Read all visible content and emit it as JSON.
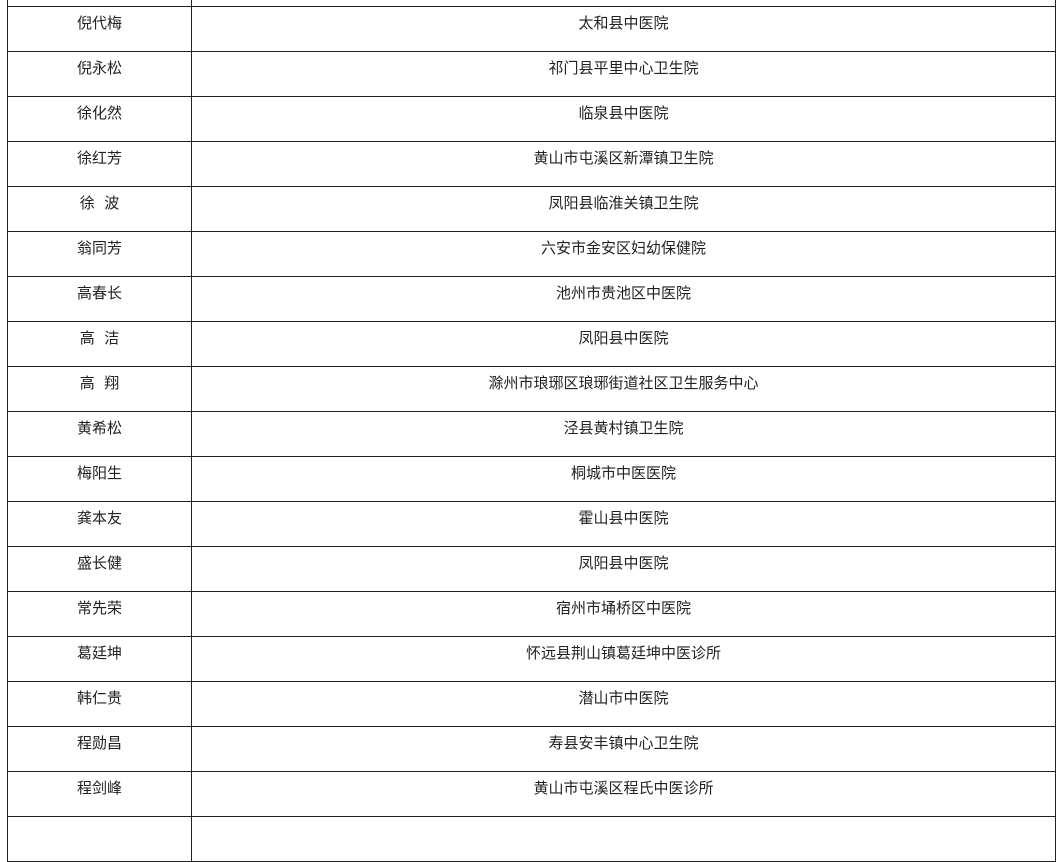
{
  "rows": [
    {
      "name": "",
      "institution": ""
    },
    {
      "name": "倪代梅",
      "institution": "太和县中医院"
    },
    {
      "name": "倪永松",
      "institution": "祁门县平里中心卫生院"
    },
    {
      "name": "徐化然",
      "institution": "临泉县中医院"
    },
    {
      "name": "徐红芳",
      "institution": "黄山市屯溪区新潭镇卫生院"
    },
    {
      "name": "徐  波",
      "institution": "凤阳县临淮关镇卫生院"
    },
    {
      "name": "翁同芳",
      "institution": "六安市金安区妇幼保健院"
    },
    {
      "name": "高春长",
      "institution": "池州市贵池区中医院"
    },
    {
      "name": "高  洁",
      "institution": "凤阳县中医院"
    },
    {
      "name": "高  翔",
      "institution": "滁州市琅琊区琅琊街道社区卫生服务中心"
    },
    {
      "name": "黄希松",
      "institution": "泾县黄村镇卫生院"
    },
    {
      "name": "梅阳生",
      "institution": "桐城市中医医院"
    },
    {
      "name": "龚本友",
      "institution": "霍山县中医院"
    },
    {
      "name": "盛长健",
      "institution": "凤阳县中医院"
    },
    {
      "name": "常先荣",
      "institution": "宿州市埇桥区中医院"
    },
    {
      "name": "葛廷坤",
      "institution": "怀远县荆山镇葛廷坤中医诊所"
    },
    {
      "name": "韩仁贵",
      "institution": "潜山市中医院"
    },
    {
      "name": "程勋昌",
      "institution": "寿县安丰镇中心卫生院"
    },
    {
      "name": "程剑峰",
      "institution": "黄山市屯溪区程氏中医诊所"
    },
    {
      "name": "",
      "institution": ""
    }
  ]
}
